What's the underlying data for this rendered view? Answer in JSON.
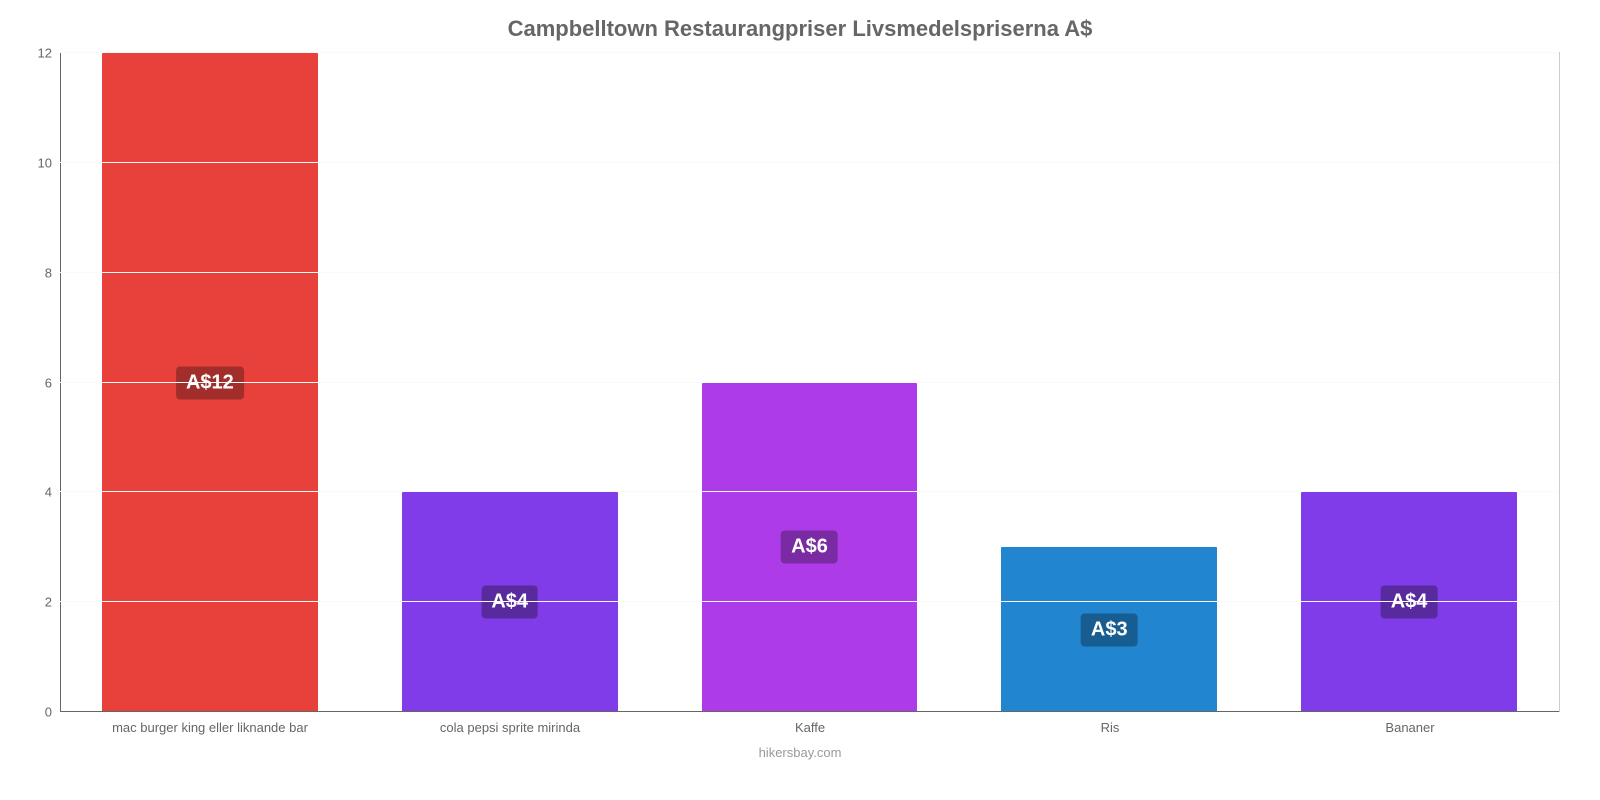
{
  "chart": {
    "type": "bar",
    "title": "Campbelltown Restaurangpriser Livsmedelspriserna A$",
    "title_fontsize": 22,
    "title_color": "#666666",
    "footer": "hikersbay.com",
    "footer_color": "#999999",
    "background_color": "#ffffff",
    "plot_border_color": "#cccccc",
    "axis_color": "#666666",
    "grid_color": "#fafafa",
    "ylim_min": 0,
    "ylim_max": 12,
    "ytick_step": 2,
    "ytick_label_color": "#666666",
    "ytick_fontsize": 13,
    "x_label_color": "#666666",
    "x_label_fontsize": 13,
    "bar_width_pct": 72,
    "value_badge_fontsize": 20,
    "categories": [
      "mac burger king eller liknande bar",
      "cola pepsi sprite mirinda",
      "Kaffe",
      "Ris",
      "Bananer"
    ],
    "values": [
      12,
      4,
      6,
      3,
      4
    ],
    "value_labels": [
      "A$12",
      "A$4",
      "A$6",
      "A$3",
      "A$4"
    ],
    "bar_colors": [
      "#e8413c",
      "#7f3ce8",
      "#ad3ce8",
      "#2185d0",
      "#7f3ce8"
    ],
    "badge_bg_colors": [
      "#a12e2a",
      "#592a9e",
      "#7a2aa3",
      "#175d91",
      "#592a9e"
    ]
  }
}
